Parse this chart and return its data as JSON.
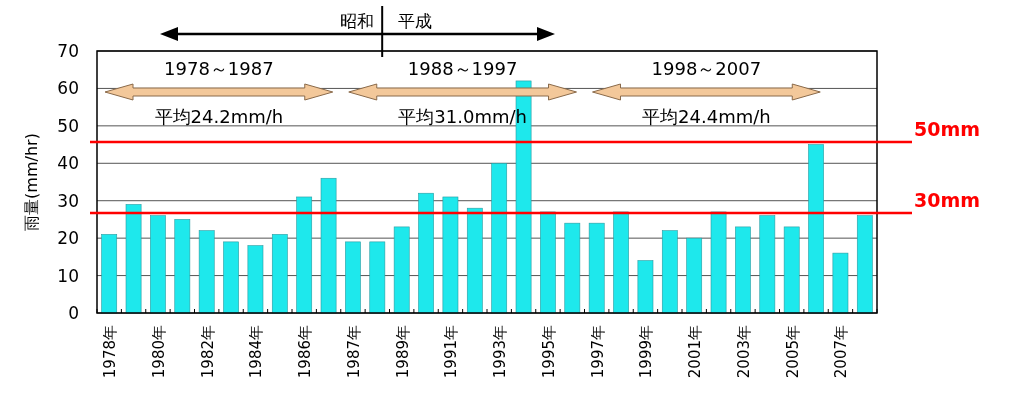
{
  "chart_data": {
    "type": "bar",
    "ylabel": "雨量(mm/hr)",
    "categories": [
      "1978年",
      null,
      "1980年",
      null,
      "1982年",
      null,
      "1984年",
      null,
      "1986年",
      null,
      "1987年",
      null,
      "1989年",
      null,
      "1991年",
      null,
      "1993年",
      null,
      "1995年",
      null,
      "1997年",
      null,
      "1999年",
      null,
      "2001年",
      null,
      "2003年",
      null,
      "2005年",
      null,
      "2007年",
      null
    ],
    "values": [
      21,
      29,
      26,
      25,
      22,
      19,
      18,
      21,
      31,
      36,
      19,
      19,
      23,
      32,
      31,
      28,
      40,
      62,
      27,
      24,
      24,
      27,
      14,
      22,
      20,
      27,
      23,
      26,
      23,
      45,
      16,
      26
    ],
    "color": "#1ee8ec",
    "ylim": [
      0,
      70
    ],
    "yticks": [
      0,
      10,
      20,
      30,
      40,
      50,
      60,
      70
    ],
    "grid": "y",
    "ref_lines": [
      {
        "axis": "y",
        "value": 45.7,
        "label": "50mm",
        "color": "#ff0000"
      },
      {
        "axis": "y",
        "value": 26.7,
        "label": "30mm",
        "color": "#ff0000"
      }
    ],
    "annotations": [
      "昭和",
      "平成",
      "1978～1987",
      "平均24.2mm/h",
      "1988～1997",
      "平均31.0mm/h",
      "1998～2007",
      "平均24.4mm/h"
    ]
  }
}
